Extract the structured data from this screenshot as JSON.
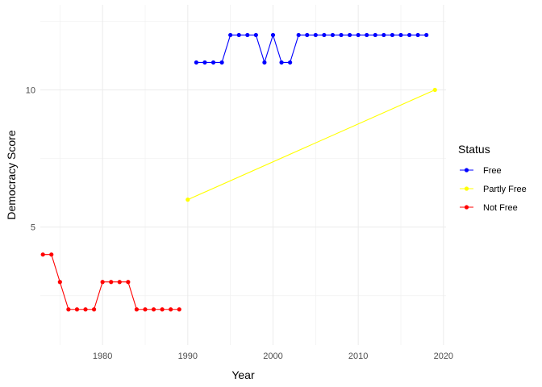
{
  "chart_data": {
    "type": "line",
    "xlabel": "Year",
    "ylabel": "Democracy Score",
    "xlim": [
      1972.7,
      2020.3
    ],
    "ylim": [
      0.7,
      13.1
    ],
    "x_ticks": [
      1980,
      1990,
      2000,
      2010,
      2020
    ],
    "y_ticks": [
      5,
      10
    ],
    "grid": true,
    "legend": {
      "title": "Status",
      "placement": "right",
      "entries": [
        "Free",
        "Partly Free",
        "Not Free"
      ]
    },
    "series": [
      {
        "name": "Free",
        "color": "#0000ff",
        "points": [
          [
            1991,
            11
          ],
          [
            1992,
            11
          ],
          [
            1993,
            11
          ],
          [
            1994,
            11
          ],
          [
            1995,
            12
          ],
          [
            1996,
            12
          ],
          [
            1997,
            12
          ],
          [
            1998,
            12
          ],
          [
            1999,
            11
          ],
          [
            2000,
            12
          ],
          [
            2001,
            11
          ],
          [
            2002,
            11
          ],
          [
            2003,
            12
          ],
          [
            2004,
            12
          ],
          [
            2005,
            12
          ],
          [
            2006,
            12
          ],
          [
            2007,
            12
          ],
          [
            2008,
            12
          ],
          [
            2009,
            12
          ],
          [
            2010,
            12
          ],
          [
            2011,
            12
          ],
          [
            2012,
            12
          ],
          [
            2013,
            12
          ],
          [
            2014,
            12
          ],
          [
            2015,
            12
          ],
          [
            2016,
            12
          ],
          [
            2017,
            12
          ],
          [
            2018,
            12
          ]
        ]
      },
      {
        "name": "Partly Free",
        "color": "#ffff00",
        "points": [
          [
            1990,
            6
          ],
          [
            2019,
            10
          ]
        ]
      },
      {
        "name": "Not Free",
        "color": "#ff0000",
        "points": [
          [
            1973,
            4
          ],
          [
            1974,
            4
          ],
          [
            1975,
            3
          ],
          [
            1976,
            2
          ],
          [
            1977,
            2
          ],
          [
            1978,
            2
          ],
          [
            1979,
            2
          ],
          [
            1980,
            3
          ],
          [
            1981,
            3
          ],
          [
            1982,
            3
          ],
          [
            1983,
            3
          ],
          [
            1984,
            2
          ],
          [
            1985,
            2
          ],
          [
            1986,
            2
          ],
          [
            1987,
            2
          ],
          [
            1988,
            2
          ],
          [
            1989,
            2
          ]
        ]
      }
    ]
  }
}
